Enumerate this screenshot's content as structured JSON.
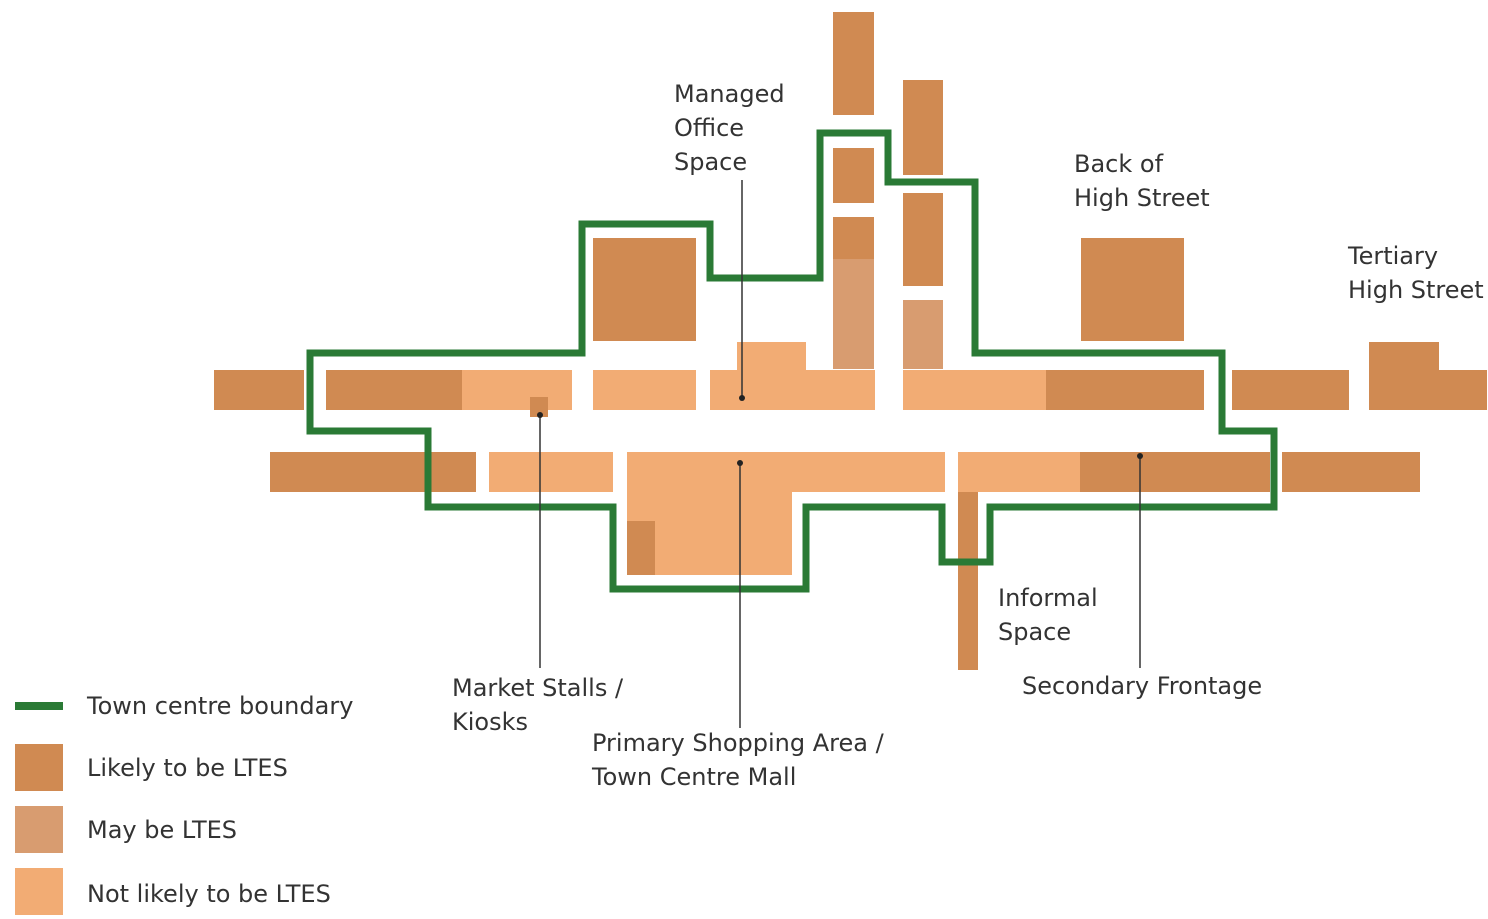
{
  "labels": [
    {
      "lines": [
        "Managed",
        "Office",
        "Space"
      ]
    },
    {
      "lines": [
        "Back of",
        "High Street"
      ]
    },
    {
      "lines": [
        "Tertiary",
        "High Street"
      ]
    },
    {
      "lines": [
        "Informal",
        "Space"
      ]
    },
    {
      "lines": [
        "Market Stalls /",
        "Kiosks"
      ]
    },
    {
      "lines": [
        "Primary Shopping Area /",
        "Town Centre Mall"
      ]
    },
    {
      "lines": [
        "Secondary Frontage"
      ]
    }
  ],
  "legend": [
    {
      "label": "Town centre boundary"
    },
    {
      "label": "Likely to be LTES"
    },
    {
      "label": "May be LTES"
    },
    {
      "label": "Not likely to be LTES"
    }
  ]
}
